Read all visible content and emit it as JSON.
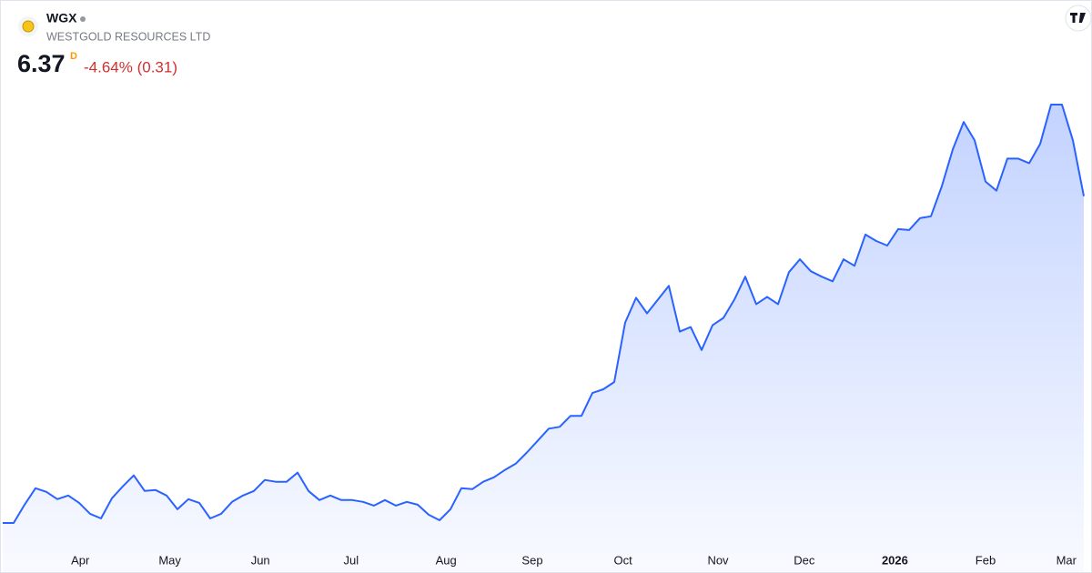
{
  "header": {
    "symbol": "WGX",
    "name": "WESTGOLD RESOURCES LTD",
    "price": 6.37,
    "interval": "D",
    "change": "-4.64% (0.31)"
  },
  "chart_data": {
    "type": "area",
    "color": "#2962ff",
    "values": [
      2.8,
      2.8,
      3.0,
      3.18,
      3.14,
      3.06,
      3.1,
      3.02,
      2.9,
      2.85,
      3.07,
      3.2,
      3.32,
      3.15,
      3.16,
      3.1,
      2.95,
      3.06,
      3.02,
      2.85,
      2.9,
      3.03,
      3.1,
      3.15,
      3.27,
      3.25,
      3.25,
      3.35,
      3.15,
      3.05,
      3.1,
      3.05,
      3.05,
      3.03,
      2.99,
      3.05,
      2.99,
      3.03,
      3.0,
      2.89,
      2.83,
      2.95,
      3.18,
      3.17,
      3.25,
      3.3,
      3.38,
      3.45,
      3.57,
      3.7,
      3.83,
      3.85,
      3.97,
      3.97,
      4.22,
      4.26,
      4.34,
      4.99,
      5.26,
      5.09,
      5.24,
      5.39,
      4.89,
      4.94,
      4.69,
      4.96,
      5.04,
      5.24,
      5.49,
      5.19,
      5.27,
      5.19,
      5.54,
      5.68,
      5.55,
      5.49,
      5.44,
      5.68,
      5.61,
      5.95,
      5.88,
      5.83,
      6.01,
      6.0,
      6.13,
      6.15,
      6.48,
      6.88,
      7.18,
      6.98,
      6.53,
      6.43,
      6.78,
      6.78,
      6.73,
      6.94,
      7.37,
      7.37,
      6.98,
      6.37
    ],
    "xticks": [
      {
        "value": 7.1,
        "label": "Apr"
      },
      {
        "value": 15.3,
        "label": "May"
      },
      {
        "value": 23.6,
        "label": "Jun"
      },
      {
        "value": 31.9,
        "label": "Jul"
      },
      {
        "value": 40.6,
        "label": "Aug"
      },
      {
        "value": 48.5,
        "label": "Sep"
      },
      {
        "value": 56.8,
        "label": "Oct"
      },
      {
        "value": 65.5,
        "label": "Nov"
      },
      {
        "value": 73.4,
        "label": "Dec"
      },
      {
        "value": 81.7,
        "label": "2026"
      },
      {
        "value": 90,
        "label": "Feb"
      },
      {
        "value": 97.4,
        "label": "Mar"
      }
    ]
  }
}
